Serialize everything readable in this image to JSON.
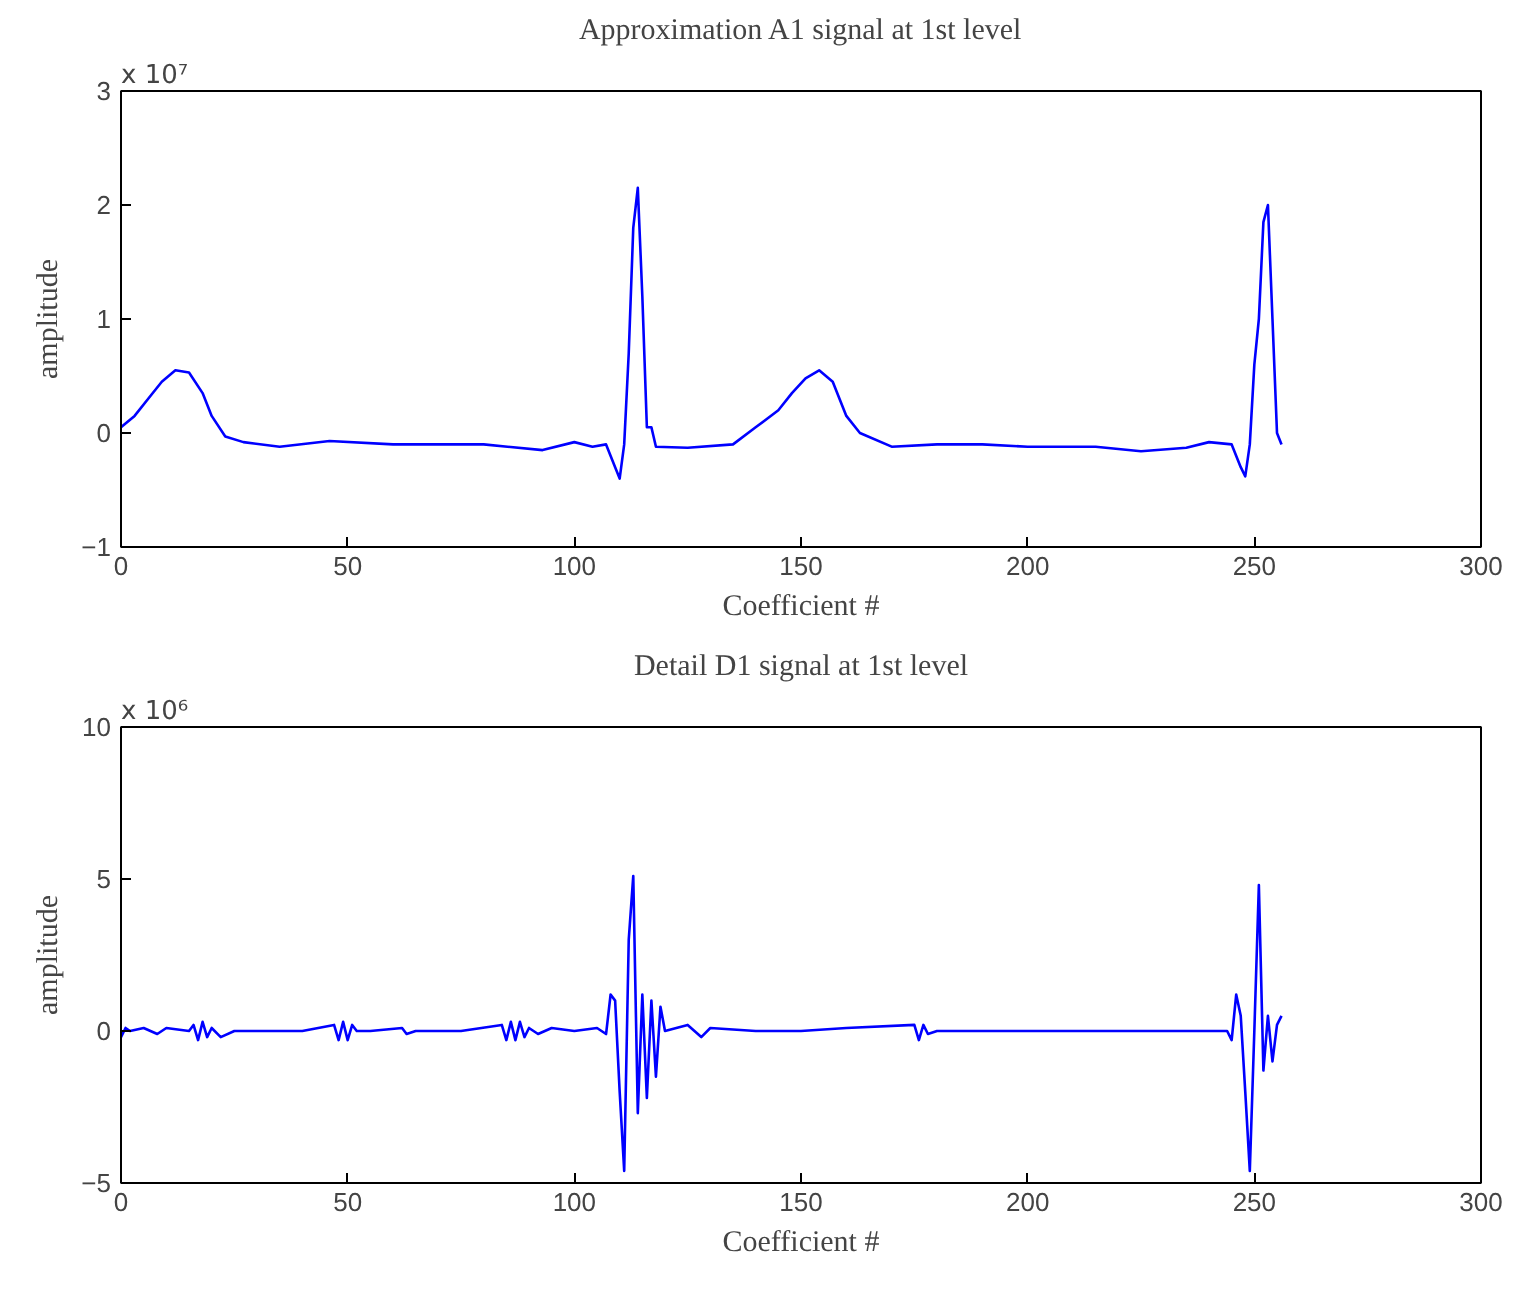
{
  "chart_data": [
    {
      "type": "line",
      "title": "Approximation A1 signal at 1st level",
      "xlabel": "Coefficient #",
      "ylabel": "amplitude",
      "annotations": [
        "x 10⁷"
      ],
      "x": [
        0,
        3,
        6,
        9,
        12,
        15,
        18,
        20,
        23,
        27,
        35,
        46,
        60,
        80,
        93,
        100,
        104,
        107,
        109,
        110,
        111,
        112,
        113,
        114,
        115,
        116,
        117,
        118,
        125,
        135,
        140,
        145,
        148,
        151,
        154,
        157,
        160,
        163,
        170,
        180,
        190,
        200,
        215,
        225,
        235,
        240,
        245,
        247,
        248,
        249,
        250,
        251,
        252,
        253,
        254,
        255,
        256
      ],
      "series": [
        {
          "color": "#0000ff",
          "values": [
            0.05,
            0.15,
            0.3,
            0.45,
            0.55,
            0.53,
            0.35,
            0.15,
            -0.03,
            -0.08,
            -0.12,
            -0.07,
            -0.1,
            -0.1,
            -0.15,
            -0.08,
            -0.12,
            -0.1,
            -0.3,
            -0.4,
            -0.1,
            0.7,
            1.8,
            2.15,
            1.2,
            0.05,
            0.05,
            -0.12,
            -0.13,
            -0.1,
            0.05,
            0.2,
            0.35,
            0.48,
            0.55,
            0.45,
            0.15,
            0,
            -0.12,
            -0.1,
            -0.1,
            -0.12,
            -0.12,
            -0.16,
            -0.13,
            -0.08,
            -0.1,
            -0.3,
            -0.38,
            -0.1,
            0.6,
            1.0,
            1.85,
            2.0,
            1.0,
            0,
            -0.1
          ]
        }
      ],
      "xlim": [
        0,
        300
      ],
      "ylim": [
        -1,
        3
      ],
      "xticks": [
        0,
        50,
        100,
        150,
        200,
        250,
        300
      ],
      "yticks": [
        -1,
        0,
        1,
        2,
        3
      ],
      "grid": false,
      "line_style": "solid",
      "marker": "none"
    },
    {
      "type": "line",
      "title": "Detail D1 signal at 1st level",
      "xlabel": "Coefficient #",
      "ylabel": "amplitude",
      "annotations": [
        "x 10⁶"
      ],
      "x": [
        0,
        1,
        2,
        5,
        8,
        10,
        15,
        16,
        17,
        18,
        19,
        20,
        22,
        25,
        30,
        40,
        47,
        48,
        49,
        50,
        51,
        52,
        55,
        62,
        63,
        65,
        70,
        75,
        84,
        85,
        86,
        87,
        88,
        89,
        90,
        92,
        95,
        100,
        105,
        107,
        108,
        109,
        110,
        111,
        112,
        113,
        114,
        115,
        116,
        117,
        118,
        119,
        120,
        125,
        128,
        130,
        140,
        150,
        160,
        175,
        176,
        177,
        178,
        180,
        190,
        200,
        210,
        220,
        230,
        240,
        244,
        245,
        246,
        247,
        248,
        249,
        250,
        251,
        252,
        253,
        254,
        255,
        256
      ],
      "series": [
        {
          "color": "#0000ff",
          "values": [
            -0.2,
            0.1,
            0,
            0.1,
            -0.1,
            0.1,
            0,
            0.2,
            -0.3,
            0.3,
            -0.2,
            0.1,
            -0.2,
            0,
            0,
            0,
            0.2,
            -0.3,
            0.3,
            -0.3,
            0.2,
            0,
            0,
            0.1,
            -0.1,
            0,
            0,
            0,
            0.2,
            -0.3,
            0.3,
            -0.3,
            0.3,
            -0.2,
            0.1,
            -0.1,
            0.1,
            0,
            0.1,
            -0.1,
            1.2,
            1.0,
            -2.0,
            -4.6,
            3.0,
            5.1,
            -2.7,
            1.2,
            -2.2,
            1.0,
            -1.5,
            0.8,
            0,
            0.2,
            -0.2,
            0.1,
            0,
            0,
            0.1,
            0.2,
            -0.3,
            0.2,
            -0.1,
            0,
            0,
            0,
            0,
            0,
            0,
            0,
            0,
            -0.3,
            1.2,
            0.5,
            -2.0,
            -4.6,
            0,
            4.8,
            -1.3,
            0.5,
            -1.0,
            0.2,
            0.5
          ]
        }
      ],
      "xlim": [
        0,
        300
      ],
      "ylim": [
        -5,
        10
      ],
      "xticks": [
        0,
        50,
        100,
        150,
        200,
        250,
        300
      ],
      "yticks": [
        -5,
        0,
        5,
        10
      ],
      "grid": false,
      "line_style": "solid",
      "marker": "none"
    }
  ]
}
